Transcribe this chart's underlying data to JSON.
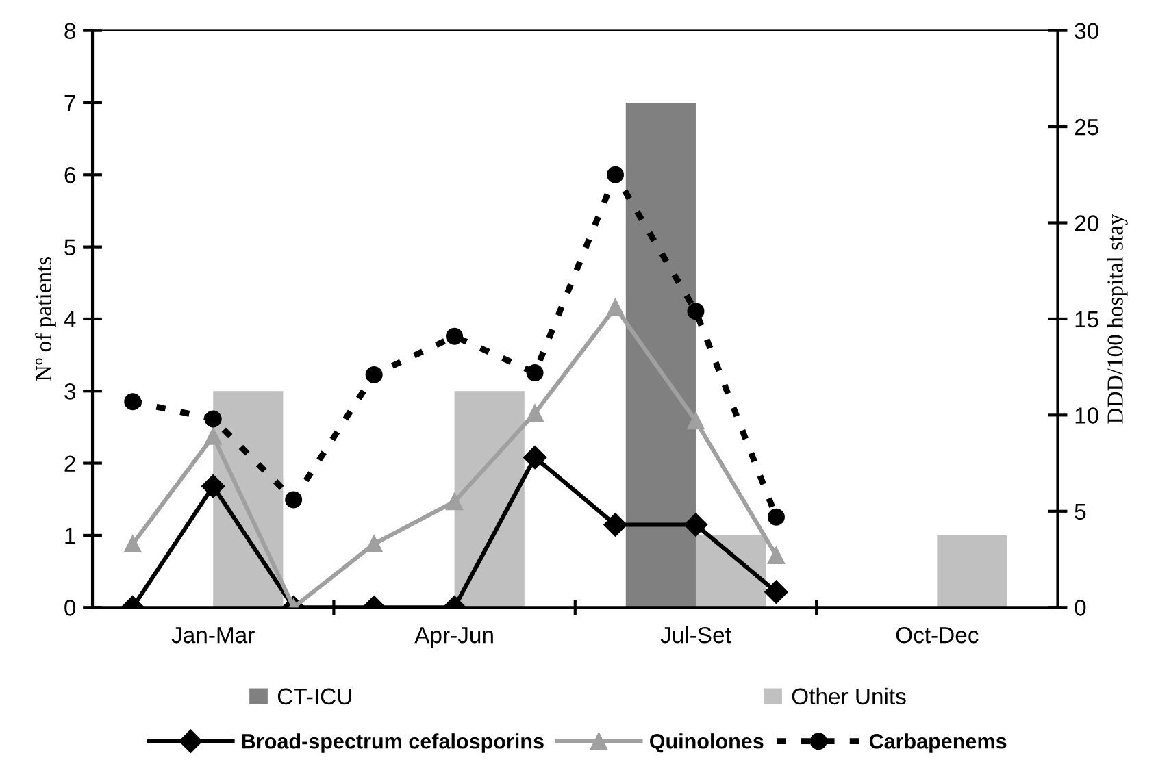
{
  "chart_data": {
    "type": "bar",
    "ylabel": "Nº of patients",
    "y2label": "DDD/100 hospital stay",
    "categories": [
      null,
      "Jan-Mar",
      null,
      null,
      "Apr-Jun",
      null,
      null,
      "Jul-Set",
      null,
      null,
      "Oct-Dec",
      null
    ],
    "ylim": [
      0,
      8
    ],
    "yticks": [
      0,
      1,
      2,
      3,
      4,
      5,
      6,
      7,
      8
    ],
    "y2lim": [
      0,
      30
    ],
    "y2ticks": [
      0,
      5,
      10,
      15,
      20,
      25,
      30
    ],
    "legend": "bottom",
    "grid": false,
    "series": [
      {
        "name": "CT-ICU",
        "color": "#808080",
        "values": [
          null,
          null,
          null,
          null,
          null,
          null,
          null,
          7,
          null,
          null,
          null,
          null
        ]
      },
      {
        "name": "Other Units",
        "color": "#c0c0c0",
        "values": [
          null,
          3,
          null,
          null,
          3,
          null,
          null,
          1,
          null,
          null,
          1,
          null
        ]
      },
      {
        "name": "Broad-spectrum cefalosporins",
        "type": "line",
        "axis": "y2",
        "color": "#000000",
        "marker": "diamond",
        "line_style": "solid",
        "values": [
          0,
          6.3,
          0,
          0,
          0,
          7.8,
          4.3,
          4.3,
          0.8,
          null,
          null,
          null
        ]
      },
      {
        "name": "Quinolones",
        "type": "line",
        "axis": "y2",
        "color": "#a0a0a0",
        "marker": "triangle",
        "line_style": "solid",
        "values": [
          3.3,
          8.9,
          0,
          3.3,
          5.5,
          10.1,
          15.6,
          9.7,
          2.7,
          null,
          null,
          null
        ]
      },
      {
        "name": "Carbapenems",
        "type": "line",
        "axis": "y2",
        "color": "#000000",
        "marker": "circle",
        "line_style": "dashed",
        "values": [
          10.7,
          9.8,
          5.6,
          12.1,
          14.1,
          12.2,
          22.5,
          15.4,
          4.7,
          null,
          null,
          null
        ]
      }
    ]
  }
}
